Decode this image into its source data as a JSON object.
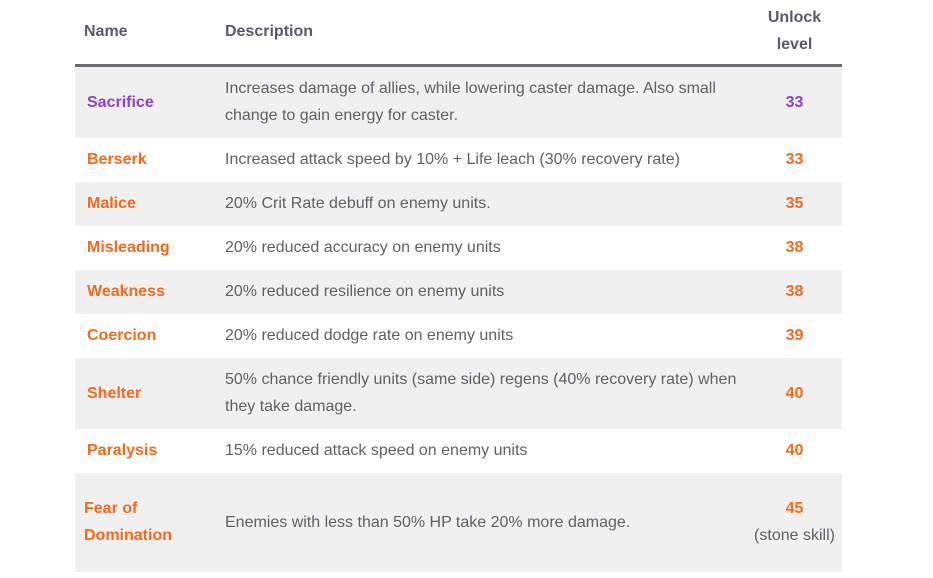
{
  "headers": {
    "name": "Name",
    "description": "Description",
    "unlock_level_line1": "Unlock",
    "unlock_level_line2": "level"
  },
  "colors": {
    "accent_orange": "#f46a1d",
    "accent_purple": "#8a43c9",
    "row_stripe": "#f0f0f0",
    "header_rule": "#6b6b72"
  },
  "rows": [
    {
      "name": "Sacrifice",
      "description": "Increases damage of allies, while lowering caster damage. Also small change to gain energy for caster.",
      "level": "33",
      "level_note": ""
    },
    {
      "name": "Berserk",
      "description": "Increased attack speed by 10% + Life leach (30% recovery rate)",
      "level": "33",
      "level_note": ""
    },
    {
      "name": "Malice",
      "description": "20% Crit Rate debuff on enemy units.",
      "level": "35",
      "level_note": ""
    },
    {
      "name": "Misleading",
      "description": "20% reduced accuracy on enemy units",
      "level": "38",
      "level_note": ""
    },
    {
      "name": "Weakness",
      "description": "20% reduced resilience on enemy units",
      "level": "38",
      "level_note": ""
    },
    {
      "name": "Coercion",
      "description": "20% reduced dodge rate on enemy units",
      "level": "39",
      "level_note": ""
    },
    {
      "name": "Shelter",
      "description": "50% chance friendly units (same side) regens (40% recovery rate) when they take damage.",
      "level": "40",
      "level_note": ""
    },
    {
      "name": "Paralysis",
      "description": "15% reduced attack speed on enemy units",
      "level": "40",
      "level_note": ""
    },
    {
      "name": "Fear of Domination",
      "description": "Enemies with less than 50% HP take 20% more damage.",
      "level": "45",
      "level_note": "(stone skill)"
    }
  ]
}
